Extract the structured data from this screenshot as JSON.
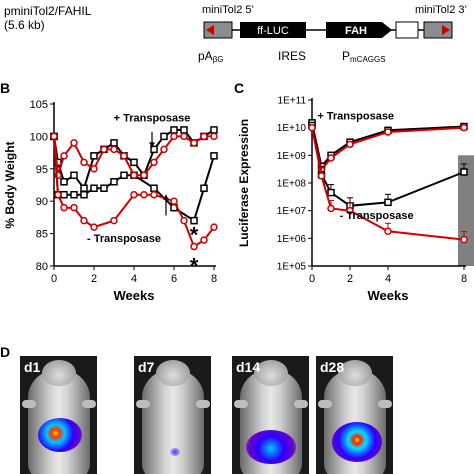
{
  "panel_a": {
    "construct_name": "pminiTol2/FAHIL",
    "construct_size": "(5.6 kb)",
    "label_left_end": "miniTol2 5’",
    "label_right_end": "miniTol2 3’",
    "box_luc": "ff-LUC",
    "box_fah": "FAH",
    "element_pa": "pA",
    "element_pa_sub": "βG",
    "element_ires": "IRES",
    "element_promoter": "P",
    "element_promoter_sub": "mCAGGS",
    "colors": {
      "box_fill": "#000000",
      "end_fill": "#8c8c8c",
      "end_arrow": "#cc0000"
    }
  },
  "panel_b": {
    "letter": "B"
  },
  "panel_c": {
    "letter": "C",
    "shade_color": "#808080"
  },
  "panel_d": {
    "letter": "D",
    "mice": [
      {
        "label": "d1",
        "signal": "strong"
      },
      {
        "label": "d7",
        "signal": "faint"
      },
      {
        "label": "d14",
        "signal": "medium"
      },
      {
        "label": "d28",
        "signal": "strong"
      }
    ]
  },
  "chart_data": [
    {
      "type": "line",
      "panel": "B",
      "xlabel": "Weeks",
      "ylabel": "% Body Weight",
      "xlim": [
        0,
        8
      ],
      "ylim": [
        80,
        105
      ],
      "xticks": [
        0,
        2,
        4,
        6,
        8
      ],
      "yticks": [
        80,
        85,
        90,
        95,
        100,
        105
      ],
      "series": [
        {
          "color": "#000000",
          "marker": "square",
          "x": [
            0,
            0.2,
            0.5,
            1,
            1.5,
            2,
            2.5,
            3,
            3.5,
            4,
            4.5,
            5,
            5.5,
            6,
            6.5,
            7,
            7.5,
            8
          ],
          "y": [
            100,
            96,
            93,
            94,
            92,
            97,
            98,
            99,
            97,
            96,
            94,
            98,
            100,
            101,
            101,
            99,
            100,
            101
          ]
        },
        {
          "color": "#000000",
          "marker": "square",
          "x": [
            0,
            0.2,
            0.5,
            1,
            1.5,
            2,
            2.5,
            3,
            3.5,
            4,
            5,
            6,
            7,
            7.5,
            8
          ],
          "y": [
            100,
            91,
            91,
            91,
            91,
            92,
            92,
            93,
            94,
            94,
            92,
            89,
            87,
            92,
            97
          ]
        },
        {
          "color": "#cc0000",
          "marker": "circle",
          "x": [
            0,
            0.2,
            0.5,
            1,
            1.5,
            2,
            2.5,
            3,
            3.5,
            4,
            4.5,
            5,
            5.5,
            6,
            6.5,
            7,
            7.5,
            8
          ],
          "y": [
            100,
            94,
            97,
            99,
            96,
            95,
            98,
            98,
            97,
            94,
            94,
            96,
            98,
            100,
            100,
            99,
            100,
            100
          ]
        },
        {
          "color": "#cc0000",
          "marker": "circle",
          "x": [
            0,
            0.2,
            0.5,
            1,
            1.5,
            2,
            3,
            4,
            4.5,
            5,
            6,
            6.5,
            7,
            7.5,
            8
          ],
          "y": [
            100,
            91,
            89,
            89,
            87,
            86,
            87,
            91,
            91,
            91,
            90,
            87,
            83,
            84,
            86
          ]
        }
      ],
      "annotations": [
        {
          "text": "+ Transposase",
          "x": 4.9,
          "y": 102.3
        },
        {
          "text": "- Transposase",
          "x": 3.5,
          "y": 83.7
        },
        {
          "text": "*",
          "x": 7.0,
          "y": 85.2
        },
        {
          "text": "*",
          "x": 7.0,
          "y": 80.4
        }
      ]
    },
    {
      "type": "line",
      "panel": "C",
      "xlabel": "Weeks",
      "ylabel": "Luciferase Expression",
      "yscale": "log",
      "xlim": [
        0,
        8
      ],
      "ylim": [
        100000,
        100000000000
      ],
      "xticks": [
        0,
        2,
        4,
        8
      ],
      "ytick_labels": [
        "1E+05",
        "1E+06",
        "1E+07",
        "1E+08",
        "1E+09",
        "1E+10",
        "1E+11"
      ],
      "grid": false,
      "series": [
        {
          "color": "#000000",
          "marker": "square",
          "x": [
            0,
            0.5,
            1,
            2,
            4,
            8
          ],
          "y": [
            15000000000,
            400000000,
            1000000000,
            3000000000,
            8000000000,
            11000000000
          ]
        },
        {
          "color": "#cc0000",
          "marker": "circle",
          "x": [
            0,
            0.5,
            1,
            2,
            4,
            8
          ],
          "y": [
            12000000000,
            300000000,
            800000000,
            2500000000,
            7000000000,
            10000000000
          ]
        },
        {
          "color": "#000000",
          "marker": "square",
          "x": [
            0,
            0.5,
            1,
            2,
            4,
            8
          ],
          "y": [
            12000000000,
            200000000,
            45000000,
            15000000,
            20000000,
            250000000
          ]
        },
        {
          "color": "#cc0000",
          "marker": "circle",
          "x": [
            0,
            0.5,
            1,
            2,
            4,
            8
          ],
          "y": [
            10000000000,
            180000000,
            12000000,
            10000000,
            1800000,
            900000
          ]
        }
      ],
      "annotations": [
        {
          "text": "+ Transposase",
          "x": 2.3,
          "y": 20000000000
        },
        {
          "text": "- Transposase",
          "x": 3.4,
          "y": 5000000
        }
      ]
    }
  ]
}
